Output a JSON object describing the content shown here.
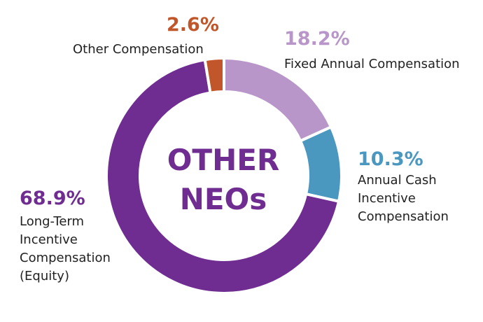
{
  "chart_data": {
    "type": "pie",
    "donut": true,
    "center_label": [
      "OTHER",
      "NEOs"
    ],
    "slices": [
      {
        "label_lines": [
          "Fixed Annual Compensation"
        ],
        "value": 18.2,
        "value_label": "18.2%",
        "color": "#b996c9"
      },
      {
        "label_lines": [
          "Annual Cash",
          "Incentive",
          "Compensation"
        ],
        "value": 10.3,
        "value_label": "10.3%",
        "color": "#4a97c0"
      },
      {
        "label_lines": [
          "Long-Term",
          "Incentive",
          "Compensation",
          "(Equity)"
        ],
        "value": 68.9,
        "value_label": "68.9%",
        "color": "#6f2c91"
      },
      {
        "label_lines": [
          "Other Compensation"
        ],
        "value": 2.6,
        "value_label": "2.6%",
        "color": "#c0562a"
      }
    ]
  }
}
